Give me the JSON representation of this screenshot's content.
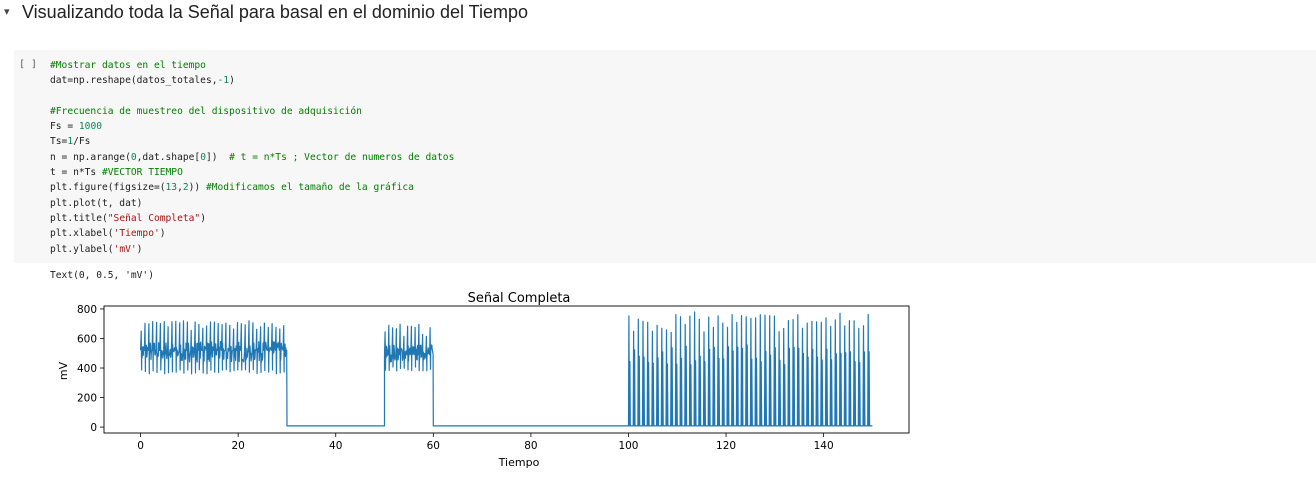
{
  "heading": {
    "title": "Visualizando toda la Señal para basal en el dominio del Tiempo",
    "collapse_icon": "▾"
  },
  "cell": {
    "run_label": "[ ]",
    "code_lines": [
      [
        {
          "t": "comment",
          "v": "#Mostrar datos en el tiempo"
        }
      ],
      [
        {
          "t": "code",
          "v": "dat=np.reshape(datos_totales,"
        },
        {
          "t": "number",
          "v": "-1"
        },
        {
          "t": "code",
          "v": ")"
        }
      ],
      [],
      [
        {
          "t": "comment",
          "v": "#Frecuencia de muestreo del dispositivo de adquisición"
        }
      ],
      [
        {
          "t": "code",
          "v": "Fs = "
        },
        {
          "t": "number",
          "v": "1000"
        }
      ],
      [
        {
          "t": "code",
          "v": "Ts="
        },
        {
          "t": "number",
          "v": "1"
        },
        {
          "t": "code",
          "v": "/Fs"
        }
      ],
      [
        {
          "t": "code",
          "v": "n = np.arange("
        },
        {
          "t": "number",
          "v": "0"
        },
        {
          "t": "code",
          "v": ",dat.shape["
        },
        {
          "t": "number",
          "v": "0"
        },
        {
          "t": "code",
          "v": "])  "
        },
        {
          "t": "comment",
          "v": "# t = n*Ts ; Vector de numeros de datos"
        }
      ],
      [
        {
          "t": "code",
          "v": "t = n*Ts "
        },
        {
          "t": "comment",
          "v": "#VECTOR TIEMPO"
        }
      ],
      [
        {
          "t": "code",
          "v": "plt.figure(figsize=("
        },
        {
          "t": "number",
          "v": "13"
        },
        {
          "t": "code",
          "v": ","
        },
        {
          "t": "number",
          "v": "2"
        },
        {
          "t": "code",
          "v": ")) "
        },
        {
          "t": "comment",
          "v": "#Modificamos el tamaño de la gráfica"
        }
      ],
      [
        {
          "t": "code",
          "v": "plt.plot(t, dat)"
        }
      ],
      [
        {
          "t": "code",
          "v": "plt.title("
        },
        {
          "t": "string",
          "v": "\"Señal Completa\""
        },
        {
          "t": "code",
          "v": ")"
        }
      ],
      [
        {
          "t": "code",
          "v": "plt.xlabel("
        },
        {
          "t": "string",
          "v": "'Tiempo'"
        },
        {
          "t": "code",
          "v": ")"
        }
      ],
      [
        {
          "t": "code",
          "v": "plt.ylabel("
        },
        {
          "t": "string",
          "v": "'mV'"
        },
        {
          "t": "code",
          "v": ")"
        }
      ]
    ]
  },
  "output": {
    "text": "Text(0, 0.5, 'mV')"
  },
  "chart_data": {
    "type": "line",
    "title": "Señal Completa",
    "xlabel": "Tiempo",
    "ylabel": "mV",
    "xlim": [
      -7.5,
      157.5
    ],
    "ylim": [
      -40,
      820
    ],
    "xticks": [
      0,
      20,
      40,
      60,
      80,
      100,
      120,
      140
    ],
    "yticks": [
      0,
      200,
      400,
      600,
      800
    ],
    "line_color": "#1f77b4",
    "segments": [
      {
        "start": 0,
        "end": 30,
        "kind": "dense",
        "spikes": 38,
        "base": 520,
        "band": [
          440,
          580
        ],
        "peak": [
          650,
          720
        ],
        "trough": [
          360,
          390
        ]
      },
      {
        "start": 30,
        "end": 50,
        "kind": "flat",
        "value": 8
      },
      {
        "start": 50,
        "end": 60,
        "kind": "dense",
        "spikes": 13,
        "base": 490,
        "band": [
          440,
          560
        ],
        "peak": [
          610,
          700
        ],
        "trough": [
          380,
          410
        ]
      },
      {
        "start": 60,
        "end": 100,
        "kind": "flat",
        "value": 8
      },
      {
        "start": 100,
        "end": 150,
        "kind": "spiky",
        "spikes": 52,
        "base": 8,
        "peak": [
          640,
          780
        ],
        "mid": [
          420,
          560
        ]
      }
    ]
  }
}
